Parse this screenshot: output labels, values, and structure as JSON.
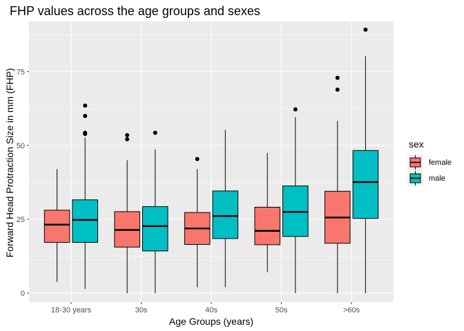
{
  "chart_data": {
    "type": "boxplot",
    "title": "FHP values across the age groups and sexes",
    "xlabel": "Age Groups (years)",
    "ylabel": "Forward Head Protraction Size in mm (FHP)",
    "categories": [
      "18-30 years",
      "30s",
      "40s",
      "50s",
      ">60s"
    ],
    "ylim": [
      -3,
      92
    ],
    "yticks": [
      0,
      25,
      50,
      75
    ],
    "grid": true,
    "legend": {
      "title": "sex",
      "position": "right"
    },
    "series": [
      {
        "name": "female",
        "color": "#F8766D",
        "boxes": [
          {
            "min": 3.8,
            "q1": 17.2,
            "median": 23.2,
            "q3": 28.1,
            "max": 42.0,
            "outliers": []
          },
          {
            "min": 0.0,
            "q1": 15.6,
            "median": 21.4,
            "q3": 27.6,
            "max": 45.0,
            "outliers": [
              52.1,
              53.5
            ]
          },
          {
            "min": 2.0,
            "q1": 16.5,
            "median": 21.9,
            "q3": 27.3,
            "max": 42.0,
            "outliers": [
              45.4
            ]
          },
          {
            "min": 7.1,
            "q1": 16.4,
            "median": 21.1,
            "q3": 29.1,
            "max": 47.5,
            "outliers": []
          },
          {
            "min": 0.0,
            "q1": 16.9,
            "median": 25.6,
            "q3": 34.5,
            "max": 58.3,
            "outliers": [
              68.9,
              72.9
            ]
          }
        ]
      },
      {
        "name": "male",
        "color": "#00BFC4",
        "boxes": [
          {
            "min": 1.4,
            "q1": 17.2,
            "median": 24.8,
            "q3": 31.6,
            "max": 52.6,
            "outliers": [
              53.9,
              54.3,
              60.0,
              63.5
            ]
          },
          {
            "min": 0.0,
            "q1": 14.3,
            "median": 22.7,
            "q3": 29.3,
            "max": 48.6,
            "outliers": [
              54.3
            ]
          },
          {
            "min": 2.0,
            "q1": 18.5,
            "median": 26.1,
            "q3": 34.6,
            "max": 55.3,
            "outliers": []
          },
          {
            "min": 0.0,
            "q1": 19.2,
            "median": 27.5,
            "q3": 36.3,
            "max": 59.6,
            "outliers": [
              62.2
            ]
          },
          {
            "min": 0.0,
            "q1": 25.3,
            "median": 37.6,
            "q3": 48.3,
            "max": 80.2,
            "outliers": [
              89.2
            ]
          }
        ]
      }
    ],
    "colors": {
      "panel_background": "#EBEBEB",
      "grid": "#FFFFFF",
      "box_outline": "#000000"
    }
  }
}
